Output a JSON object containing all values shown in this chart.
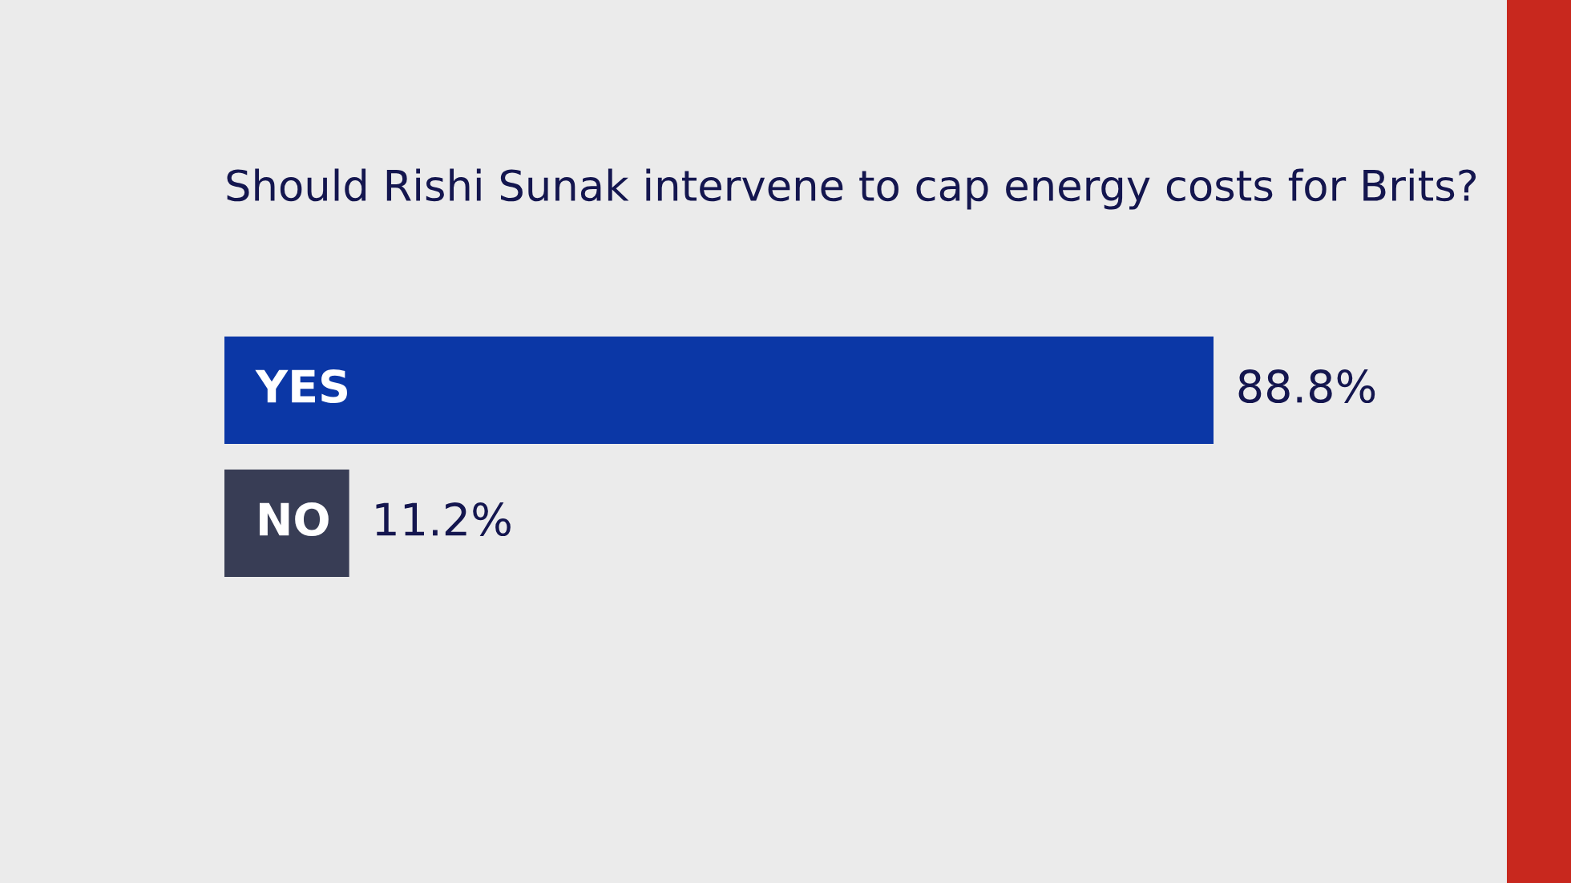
{
  "chart_data": {
    "type": "bar",
    "orientation": "horizontal",
    "title": "Should Rishi Sunak intervene to cap energy costs for Brits?",
    "categories": [
      "YES",
      "NO"
    ],
    "values": [
      88.8,
      11.2
    ],
    "colors": [
      "#0b37a6",
      "#383d55"
    ],
    "value_labels": [
      "88.8%",
      "11.2%"
    ],
    "tick_labels": false
  }
}
